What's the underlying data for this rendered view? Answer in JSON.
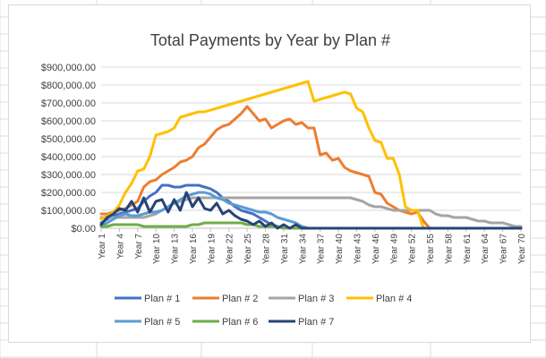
{
  "colors": {
    "grid": "#d9d9d9",
    "axis": "#bfbfbf",
    "sheet_line": "#dcdcdc"
  },
  "chart_data": {
    "type": "line",
    "title": "Total Payments by Year by Plan #",
    "xlabel": "",
    "ylabel": "",
    "ylim": [
      0,
      900000
    ],
    "yticks": [
      {
        "value": 0,
        "label": "$0.00"
      },
      {
        "value": 100000,
        "label": "$100,000.00"
      },
      {
        "value": 200000,
        "label": "$200,000.00"
      },
      {
        "value": 300000,
        "label": "$300,000.00"
      },
      {
        "value": 400000,
        "label": "$400,000.00"
      },
      {
        "value": 500000,
        "label": "$500,000.00"
      },
      {
        "value": 600000,
        "label": "$600,000.00"
      },
      {
        "value": 700000,
        "label": "$700,000.00"
      },
      {
        "value": 800000,
        "label": "$800,000.00"
      },
      {
        "value": 900000,
        "label": "$900,000.00"
      }
    ],
    "x_categories_count": 70,
    "x_tick_labels": [
      "Year 1",
      "Year 4",
      "Year 7",
      "Year 10",
      "Year 13",
      "Year 16",
      "Year 19",
      "Year 22",
      "Year 25",
      "Year 28",
      "Year 31",
      "Year 34",
      "Year 37",
      "Year 40",
      "Year 43",
      "Year 46",
      "Year 49",
      "Year 52",
      "Year 55",
      "Year 58",
      "Year 61",
      "Year 64",
      "Year 67",
      "Year 70"
    ],
    "grid": true,
    "legend_position": "bottom",
    "series": [
      {
        "name": "Plan # 1",
        "color": "#4472c4",
        "values": [
          30000,
          50000,
          70000,
          80000,
          90000,
          100000,
          110000,
          150000,
          180000,
          200000,
          240000,
          240000,
          230000,
          230000,
          240000,
          240000,
          240000,
          230000,
          220000,
          200000,
          170000,
          150000,
          120000,
          100000,
          90000,
          80000,
          60000,
          40000,
          20000,
          10000,
          0,
          0,
          0,
          0,
          0,
          0,
          0,
          0,
          0,
          0,
          0,
          0,
          0,
          0,
          0,
          0,
          0,
          0,
          0,
          0,
          0,
          0,
          0,
          0,
          0,
          0,
          0,
          0,
          0,
          0,
          0,
          0,
          0,
          0,
          0,
          0,
          0,
          0,
          0,
          0
        ]
      },
      {
        "name": "Plan # 2",
        "color": "#ed7d31",
        "values": [
          80000,
          80000,
          90000,
          100000,
          110000,
          130000,
          150000,
          230000,
          260000,
          270000,
          300000,
          320000,
          340000,
          370000,
          380000,
          400000,
          450000,
          470000,
          510000,
          550000,
          570000,
          580000,
          610000,
          640000,
          680000,
          640000,
          600000,
          610000,
          560000,
          580000,
          600000,
          610000,
          580000,
          590000,
          560000,
          560000,
          410000,
          420000,
          380000,
          390000,
          340000,
          320000,
          310000,
          300000,
          290000,
          200000,
          190000,
          140000,
          120000,
          100000,
          90000,
          80000,
          90000,
          40000,
          0,
          0,
          0,
          0,
          0,
          0,
          0,
          0,
          0,
          0,
          0,
          0,
          0,
          0,
          0,
          0
        ]
      },
      {
        "name": "Plan # 3",
        "color": "#a5a5a5",
        "values": [
          60000,
          60000,
          60000,
          60000,
          60000,
          60000,
          60000,
          60000,
          70000,
          80000,
          100000,
          120000,
          140000,
          150000,
          160000,
          170000,
          170000,
          170000,
          170000,
          170000,
          170000,
          170000,
          170000,
          170000,
          170000,
          170000,
          170000,
          170000,
          170000,
          170000,
          170000,
          170000,
          170000,
          170000,
          170000,
          170000,
          170000,
          170000,
          170000,
          170000,
          170000,
          170000,
          160000,
          150000,
          130000,
          120000,
          120000,
          110000,
          100000,
          100000,
          100000,
          100000,
          100000,
          100000,
          100000,
          80000,
          70000,
          70000,
          60000,
          60000,
          60000,
          50000,
          40000,
          40000,
          30000,
          30000,
          30000,
          20000,
          10000,
          10000
        ]
      },
      {
        "name": "Plan # 4",
        "color": "#ffc000",
        "values": [
          50000,
          70000,
          90000,
          130000,
          200000,
          250000,
          320000,
          330000,
          400000,
          520000,
          530000,
          540000,
          560000,
          620000,
          630000,
          640000,
          650000,
          650000,
          660000,
          670000,
          680000,
          690000,
          700000,
          710000,
          720000,
          730000,
          740000,
          750000,
          760000,
          770000,
          780000,
          790000,
          800000,
          810000,
          820000,
          710000,
          720000,
          730000,
          740000,
          750000,
          760000,
          750000,
          670000,
          650000,
          560000,
          490000,
          480000,
          390000,
          390000,
          300000,
          120000,
          100000,
          100000,
          0,
          0,
          0,
          0,
          0,
          0,
          0,
          0,
          0,
          0,
          0,
          0,
          0,
          0,
          0,
          0,
          0
        ]
      },
      {
        "name": "Plan # 5",
        "color": "#5b9bd5",
        "values": [
          10000,
          30000,
          50000,
          70000,
          80000,
          70000,
          70000,
          80000,
          90000,
          90000,
          100000,
          120000,
          140000,
          160000,
          180000,
          190000,
          200000,
          200000,
          190000,
          170000,
          160000,
          140000,
          130000,
          120000,
          110000,
          100000,
          90000,
          90000,
          80000,
          60000,
          50000,
          40000,
          30000,
          10000,
          0,
          0,
          0,
          0,
          0,
          0,
          0,
          0,
          0,
          0,
          0,
          0,
          0,
          0,
          0,
          0,
          0,
          0,
          0,
          0,
          0,
          0,
          0,
          0,
          0,
          0,
          0,
          0,
          0,
          0,
          0,
          0,
          0,
          0,
          0,
          0
        ]
      },
      {
        "name": "Plan # 6",
        "color": "#70ad47",
        "values": [
          10000,
          10000,
          20000,
          20000,
          20000,
          20000,
          20000,
          10000,
          10000,
          10000,
          10000,
          10000,
          10000,
          10000,
          10000,
          20000,
          20000,
          30000,
          30000,
          30000,
          30000,
          30000,
          30000,
          30000,
          20000,
          20000,
          10000,
          10000,
          10000,
          10000,
          0,
          0,
          0,
          0,
          0,
          0,
          0,
          0,
          0,
          0,
          0,
          0,
          0,
          0,
          0,
          0,
          0,
          0,
          0,
          0,
          0,
          0,
          0,
          0,
          0,
          0,
          0,
          0,
          0,
          0,
          0,
          0,
          0,
          0,
          0,
          0,
          0,
          0,
          0,
          0
        ]
      },
      {
        "name": "Plan # 7",
        "color": "#264478",
        "values": [
          20000,
          60000,
          80000,
          110000,
          100000,
          150000,
          90000,
          170000,
          90000,
          150000,
          160000,
          90000,
          160000,
          100000,
          200000,
          120000,
          170000,
          110000,
          100000,
          140000,
          80000,
          100000,
          70000,
          50000,
          40000,
          20000,
          40000,
          10000,
          30000,
          0,
          20000,
          0,
          20000,
          0,
          0,
          0,
          0,
          0,
          0,
          0,
          0,
          0,
          0,
          0,
          0,
          0,
          0,
          0,
          0,
          0,
          0,
          0,
          0,
          0,
          0,
          0,
          0,
          0,
          0,
          0,
          0,
          0,
          0,
          0,
          0,
          0,
          0,
          0,
          0,
          0
        ]
      }
    ]
  }
}
